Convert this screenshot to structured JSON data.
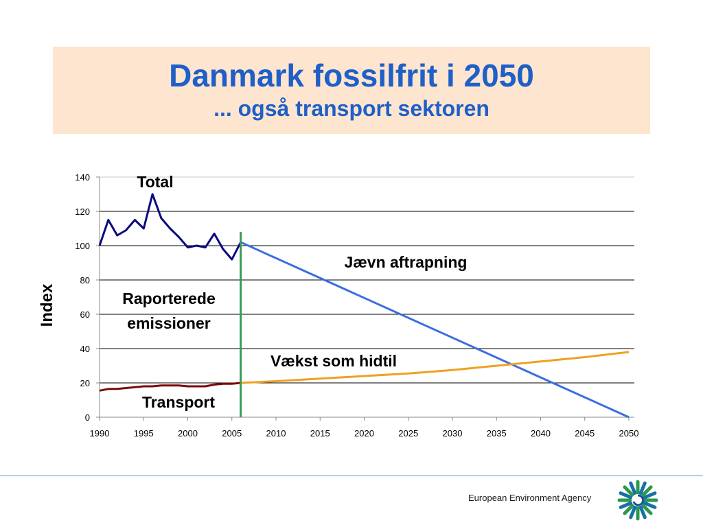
{
  "slide": {
    "title": "Danmark fossilfrit i 2050",
    "subtitle": "... også transport sektoren"
  },
  "footer": {
    "agency": "European Environment Agency"
  },
  "colors": {
    "title": "#1f5fc8",
    "title_bg": "#fde5cf",
    "total": "#0a0a80",
    "transport_hist": "#7a0a0a",
    "phaseout": "#3b6fe0",
    "growth": "#f0a020",
    "divider": "#3a9a5a"
  },
  "chart_data": {
    "type": "line",
    "ylabel": "Index",
    "xlabel": "",
    "xlim": [
      1990,
      2050
    ],
    "ylim": [
      0,
      140
    ],
    "x_ticks": [
      "1990",
      "1995",
      "2000",
      "2005",
      "2010",
      "2015",
      "2020",
      "2025",
      "2030",
      "2035",
      "2040",
      "2045",
      "2050"
    ],
    "y_ticks": [
      "0",
      "20",
      "40",
      "60",
      "80",
      "100",
      "120",
      "140"
    ],
    "grid": "horizontal",
    "divider_year": 2006,
    "series": [
      {
        "name": "Total",
        "x": [
          1990,
          1991,
          1992,
          1993,
          1994,
          1995,
          1996,
          1997,
          1998,
          1999,
          2000,
          2001,
          2002,
          2003,
          2004,
          2005,
          2006
        ],
        "values": [
          100,
          115,
          106,
          109,
          115,
          110,
          130,
          116,
          110,
          105,
          99,
          100,
          99,
          107,
          98,
          92,
          102
        ]
      },
      {
        "name": "Transport",
        "x": [
          1990,
          1991,
          1992,
          1993,
          1994,
          1995,
          1996,
          1997,
          1998,
          1999,
          2000,
          2001,
          2002,
          2003,
          2004,
          2005,
          2006
        ],
        "values": [
          15.5,
          16.5,
          16.5,
          17,
          17.5,
          18,
          18,
          18.5,
          18.5,
          18.5,
          18,
          18,
          18,
          19,
          19.5,
          19.5,
          20
        ]
      },
      {
        "name": "Jævn aftrapning",
        "x": [
          2006,
          2050
        ],
        "values": [
          102,
          0
        ]
      },
      {
        "name": "Vækst som hidtil",
        "x": [
          2006,
          2010,
          2015,
          2020,
          2025,
          2030,
          2035,
          2040,
          2045,
          2050
        ],
        "values": [
          20,
          21,
          22.5,
          24,
          25.5,
          27.5,
          30,
          32.5,
          35,
          38
        ]
      }
    ],
    "annotations": {
      "total": "Total",
      "reported_line1": "Raporterede",
      "reported_line2": "emissioner",
      "phaseout": "Jævn aftrapning",
      "growth": "Vækst som hidtil",
      "transport": "Transport"
    }
  }
}
